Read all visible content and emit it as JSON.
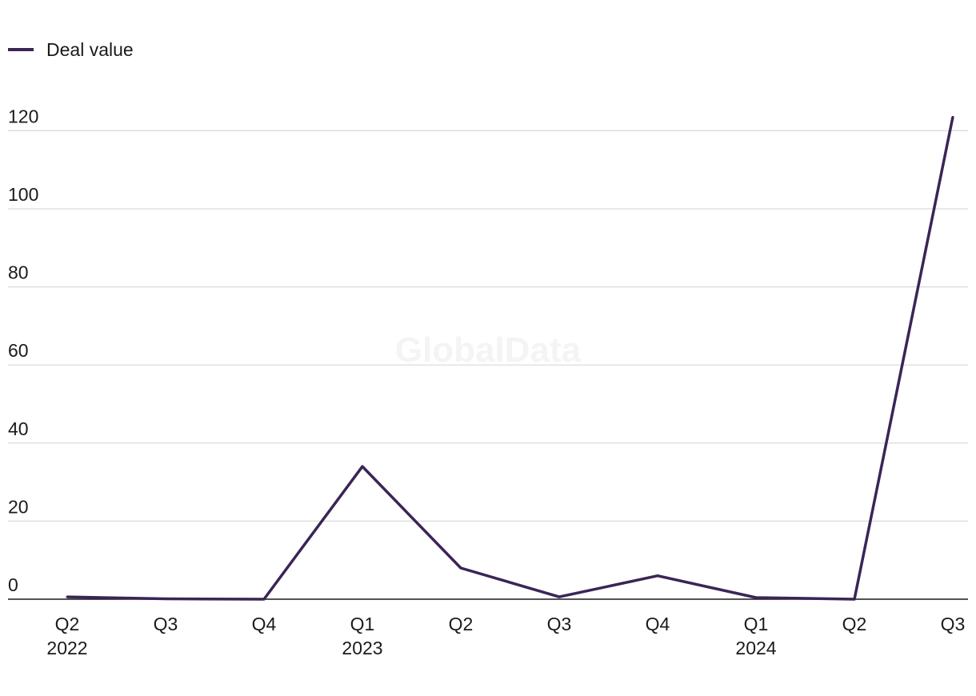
{
  "watermark": "GlobalData",
  "legend": {
    "label": "Deal value"
  },
  "colors": {
    "line": "#3a2556",
    "grid": "#d9d9d9",
    "baseline": "#1a1a1a",
    "text": "#1a1a1a"
  },
  "chart_data": {
    "type": "line",
    "categories": [
      "Q2",
      "Q3",
      "Q4",
      "Q1",
      "Q2",
      "Q3",
      "Q4",
      "Q1",
      "Q2",
      "Q3"
    ],
    "year_labels": [
      "2022",
      "",
      "",
      "2023",
      "",
      "",
      "",
      "2024",
      "",
      ""
    ],
    "series": [
      {
        "name": "Deal value",
        "values": [
          0.6,
          0.1,
          0,
          34,
          8,
          0.6,
          6,
          0.4,
          0,
          123.5
        ]
      }
    ],
    "yticks": [
      0,
      20,
      40,
      60,
      80,
      100,
      120
    ],
    "ylim": [
      0,
      125
    ],
    "grid": true,
    "legend_position": "top-left"
  }
}
